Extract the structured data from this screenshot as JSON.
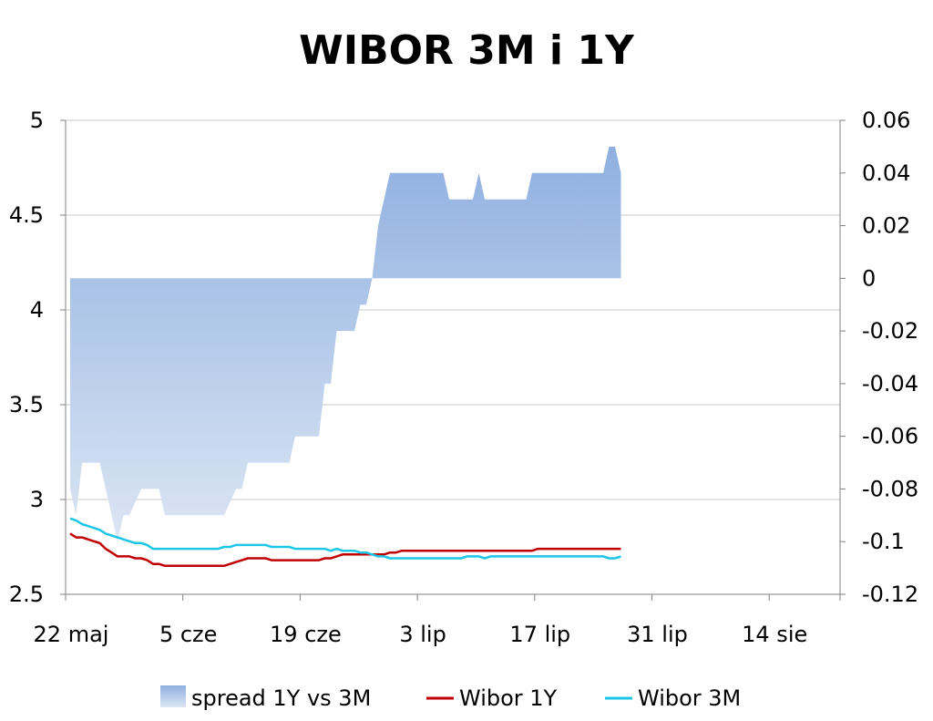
{
  "chart_data": {
    "type": "line",
    "title": "WIBOR 3M i 1Y",
    "x_tick_labels": [
      "22 maj",
      "5 cze",
      "19 cze",
      "3 lip",
      "17 lip",
      "31 lip",
      "14 sie"
    ],
    "y_left": {
      "ylim": [
        2.5,
        5
      ],
      "ticks": [
        "2.5",
        "3",
        "3.5",
        "4",
        "4.5",
        "5"
      ]
    },
    "y_right": {
      "ylim": [
        -0.12,
        0.06
      ],
      "ticks": [
        "-0.12",
        "-0.1",
        "-0.08",
        "-0.06",
        "-0.04",
        "-0.02",
        "0",
        "0.02",
        "0.04",
        "0.06"
      ]
    },
    "grid": true,
    "legend_position": "bottom",
    "series": [
      {
        "name": "spread 1Y vs 3M",
        "kind": "area",
        "axis": "right",
        "color": "#8fb0e0",
        "values": [
          -0.08,
          -0.09,
          -0.07,
          -0.07,
          -0.07,
          -0.07,
          -0.08,
          -0.09,
          -0.1,
          -0.09,
          -0.09,
          -0.085,
          -0.08,
          -0.08,
          -0.08,
          -0.08,
          -0.09,
          -0.09,
          -0.09,
          -0.09,
          -0.09,
          -0.09,
          -0.09,
          -0.09,
          -0.09,
          -0.09,
          -0.09,
          -0.085,
          -0.08,
          -0.08,
          -0.07,
          -0.07,
          -0.07,
          -0.07,
          -0.07,
          -0.07,
          -0.07,
          -0.07,
          -0.06,
          -0.06,
          -0.06,
          -0.06,
          -0.06,
          -0.04,
          -0.04,
          -0.02,
          -0.02,
          -0.02,
          -0.02,
          -0.01,
          -0.01,
          0.0,
          0.02,
          0.03,
          0.04,
          0.04,
          0.04,
          0.04,
          0.04,
          0.04,
          0.04,
          0.04,
          0.04,
          0.04,
          0.03,
          0.03,
          0.03,
          0.03,
          0.03,
          0.04,
          0.03,
          0.03,
          0.03,
          0.03,
          0.03,
          0.03,
          0.03,
          0.03,
          0.04,
          0.04,
          0.04,
          0.04,
          0.04,
          0.04,
          0.04,
          0.04,
          0.04,
          0.04,
          0.04,
          0.04,
          0.04,
          0.05,
          0.05,
          0.04
        ]
      },
      {
        "name": "Wibor 1Y",
        "kind": "line",
        "axis": "left",
        "color": "#c00000",
        "values": [
          2.82,
          2.8,
          2.8,
          2.79,
          2.78,
          2.77,
          2.74,
          2.72,
          2.7,
          2.7,
          2.7,
          2.69,
          2.69,
          2.68,
          2.66,
          2.66,
          2.65,
          2.65,
          2.65,
          2.65,
          2.65,
          2.65,
          2.65,
          2.65,
          2.65,
          2.65,
          2.65,
          2.66,
          2.67,
          2.68,
          2.69,
          2.69,
          2.69,
          2.69,
          2.68,
          2.68,
          2.68,
          2.68,
          2.68,
          2.68,
          2.68,
          2.68,
          2.68,
          2.69,
          2.69,
          2.7,
          2.71,
          2.71,
          2.71,
          2.71,
          2.71,
          2.71,
          2.71,
          2.71,
          2.72,
          2.72,
          2.73,
          2.73,
          2.73,
          2.73,
          2.73,
          2.73,
          2.73,
          2.73,
          2.73,
          2.73,
          2.73,
          2.73,
          2.73,
          2.73,
          2.73,
          2.73,
          2.73,
          2.73,
          2.73,
          2.73,
          2.73,
          2.73,
          2.73,
          2.74,
          2.74,
          2.74,
          2.74,
          2.74,
          2.74,
          2.74,
          2.74,
          2.74,
          2.74,
          2.74,
          2.74,
          2.74,
          2.74,
          2.74
        ]
      },
      {
        "name": "Wibor 3M",
        "kind": "line",
        "axis": "left",
        "color": "#1ec6e6",
        "values": [
          2.9,
          2.89,
          2.87,
          2.86,
          2.85,
          2.84,
          2.82,
          2.81,
          2.8,
          2.79,
          2.78,
          2.77,
          2.77,
          2.76,
          2.74,
          2.74,
          2.74,
          2.74,
          2.74,
          2.74,
          2.74,
          2.74,
          2.74,
          2.74,
          2.74,
          2.74,
          2.75,
          2.75,
          2.76,
          2.76,
          2.76,
          2.76,
          2.76,
          2.76,
          2.75,
          2.75,
          2.75,
          2.75,
          2.74,
          2.74,
          2.74,
          2.74,
          2.74,
          2.74,
          2.73,
          2.74,
          2.73,
          2.73,
          2.73,
          2.72,
          2.72,
          2.71,
          2.7,
          2.7,
          2.69,
          2.69,
          2.69,
          2.69,
          2.69,
          2.69,
          2.69,
          2.69,
          2.69,
          2.69,
          2.69,
          2.69,
          2.69,
          2.7,
          2.7,
          2.7,
          2.69,
          2.7,
          2.7,
          2.7,
          2.7,
          2.7,
          2.7,
          2.7,
          2.7,
          2.7,
          2.7,
          2.7,
          2.7,
          2.7,
          2.7,
          2.7,
          2.7,
          2.7,
          2.7,
          2.7,
          2.7,
          2.69,
          2.69,
          2.7
        ]
      }
    ]
  }
}
